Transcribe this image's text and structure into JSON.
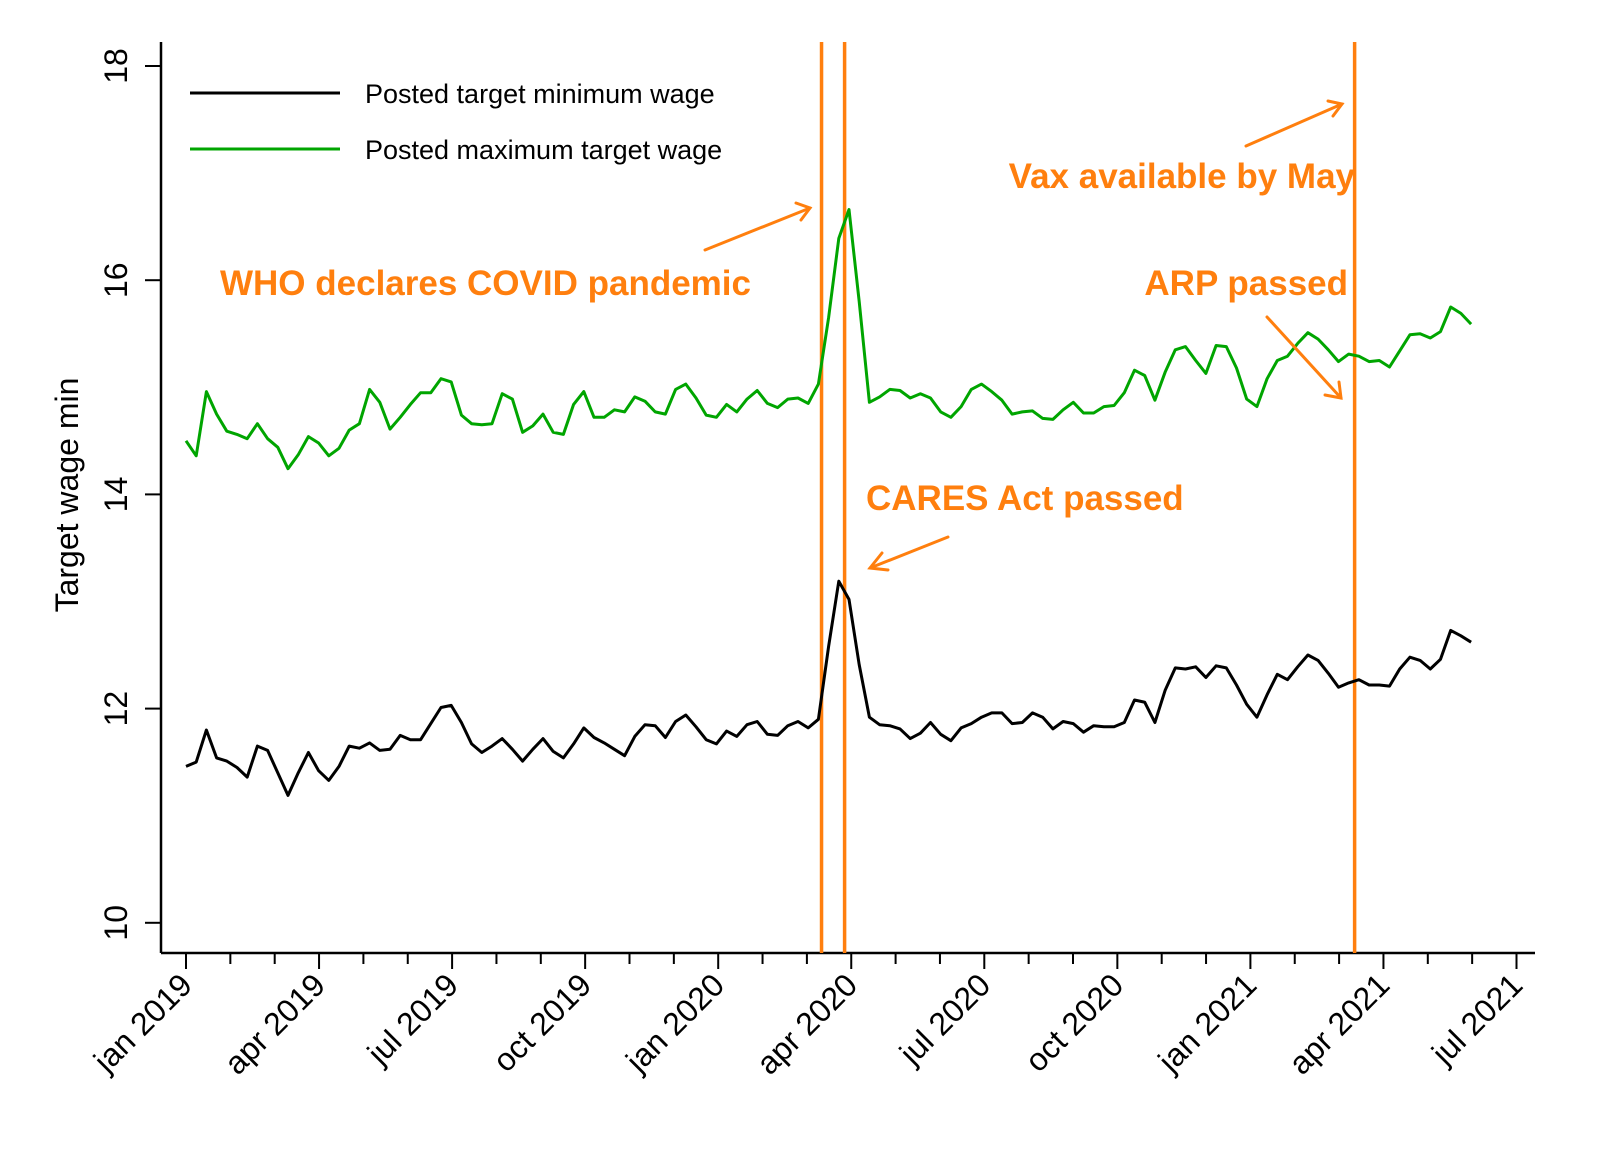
{
  "chart_data": {
    "type": "line",
    "title": "",
    "xlabel": "",
    "ylabel": "Target wage min",
    "ylim": [
      9.8,
      18.2
    ],
    "yticks": [
      10,
      12,
      14,
      16,
      18
    ],
    "ytick_labels": [
      "10",
      "12",
      "14",
      "16",
      "18"
    ],
    "x_start_date": "2019-01-01",
    "x_step": "weekly",
    "xlim_months": [
      0,
      30.5
    ],
    "xticks": [
      {
        "label": "jan 2019",
        "month": 0
      },
      {
        "label": "apr 2019",
        "month": 3
      },
      {
        "label": "jul 2019",
        "month": 6
      },
      {
        "label": "oct 2019",
        "month": 9
      },
      {
        "label": "jan 2020",
        "month": 12
      },
      {
        "label": "apr 2020",
        "month": 15
      },
      {
        "label": "jul 2020",
        "month": 18
      },
      {
        "label": "oct 2020",
        "month": 21
      },
      {
        "label": "jan 2021",
        "month": 24
      },
      {
        "label": "apr 2021",
        "month": 27
      },
      {
        "label": "jul 2021",
        "month": 30
      }
    ],
    "minor_ticks_per_interval": 2,
    "grid": false,
    "legend_position": "top-left",
    "series": [
      {
        "name": "Posted target minimum wage",
        "color": "#000000",
        "values": [
          11.46,
          11.5,
          11.8,
          11.54,
          11.51,
          11.45,
          11.36,
          11.65,
          11.61,
          11.4,
          11.19,
          11.4,
          11.59,
          11.42,
          11.33,
          11.46,
          11.65,
          11.63,
          11.68,
          11.61,
          11.62,
          11.75,
          11.71,
          11.71,
          11.86,
          12.01,
          12.03,
          11.87,
          11.67,
          11.59,
          11.65,
          11.72,
          11.62,
          11.51,
          11.62,
          11.72,
          11.6,
          11.54,
          11.67,
          11.82,
          11.73,
          11.68,
          11.62,
          11.56,
          11.74,
          11.85,
          11.84,
          11.73,
          11.88,
          11.94,
          11.83,
          11.71,
          11.67,
          11.79,
          11.74,
          11.85,
          11.88,
          11.76,
          11.75,
          11.84,
          11.88,
          11.82,
          11.9,
          12.58,
          13.19,
          13.02,
          12.41,
          11.92,
          11.85,
          11.84,
          11.81,
          11.72,
          11.77,
          11.87,
          11.76,
          11.7,
          11.82,
          11.86,
          11.92,
          11.96,
          11.96,
          11.86,
          11.87,
          11.96,
          11.92,
          11.81,
          11.88,
          11.86,
          11.78,
          11.84,
          11.83,
          11.83,
          11.87,
          12.08,
          12.06,
          11.87,
          12.17,
          12.38,
          12.37,
          12.39,
          12.29,
          12.4,
          12.38,
          12.22,
          12.04,
          11.92,
          12.13,
          12.32,
          12.27,
          12.39,
          12.5,
          12.45,
          12.33,
          12.2,
          12.24,
          12.27,
          12.22,
          12.22,
          12.21,
          12.37,
          12.48,
          12.45,
          12.37,
          12.46,
          12.73,
          12.68,
          12.62
        ]
      },
      {
        "name": "Posted maximum target wage",
        "color": "#00a500",
        "values": [
          14.5,
          14.36,
          14.96,
          14.75,
          14.59,
          14.56,
          14.52,
          14.66,
          14.52,
          14.44,
          14.24,
          14.37,
          14.54,
          14.48,
          14.36,
          14.43,
          14.6,
          14.66,
          14.98,
          14.86,
          14.61,
          14.72,
          14.84,
          14.95,
          14.95,
          15.08,
          15.05,
          14.74,
          14.66,
          14.65,
          14.66,
          14.94,
          14.89,
          14.58,
          14.64,
          14.75,
          14.58,
          14.56,
          14.84,
          14.96,
          14.72,
          14.72,
          14.79,
          14.77,
          14.91,
          14.87,
          14.77,
          14.75,
          14.98,
          15.03,
          14.9,
          14.74,
          14.72,
          14.84,
          14.77,
          14.89,
          14.97,
          14.85,
          14.81,
          14.89,
          14.9,
          14.85,
          15.03,
          15.65,
          16.39,
          16.66,
          15.8,
          14.86,
          14.91,
          14.98,
          14.97,
          14.9,
          14.94,
          14.9,
          14.77,
          14.72,
          14.82,
          14.98,
          15.03,
          14.96,
          14.88,
          14.75,
          14.77,
          14.78,
          14.71,
          14.7,
          14.79,
          14.86,
          14.76,
          14.76,
          14.82,
          14.83,
          14.95,
          15.16,
          15.11,
          14.88,
          15.14,
          15.35,
          15.38,
          15.25,
          15.13,
          15.39,
          15.38,
          15.18,
          14.89,
          14.82,
          15.08,
          15.25,
          15.29,
          15.41,
          15.51,
          15.45,
          15.35,
          15.24,
          15.31,
          15.29,
          15.24,
          15.25,
          15.19,
          15.34,
          15.49,
          15.5,
          15.46,
          15.52,
          15.75,
          15.69,
          15.59
        ]
      }
    ],
    "vertical_lines": [
      {
        "name": "WHO declares COVID pandemic",
        "month": 14.33,
        "color": "#ff7f0e"
      },
      {
        "name": "CARES Act passed",
        "month": 14.85,
        "color": "#ff7f0e"
      },
      {
        "name": "ARP passed",
        "month": 26.35,
        "color": "#ff7f0e"
      }
    ],
    "annotations": [
      {
        "text": "WHO declares COVID pandemic",
        "color": "#ff7f0e"
      },
      {
        "text": "CARES Act passed",
        "color": "#ff7f0e"
      },
      {
        "text": "Vax available by May",
        "color": "#ff7f0e"
      },
      {
        "text": "ARP passed",
        "color": "#ff7f0e"
      }
    ]
  }
}
